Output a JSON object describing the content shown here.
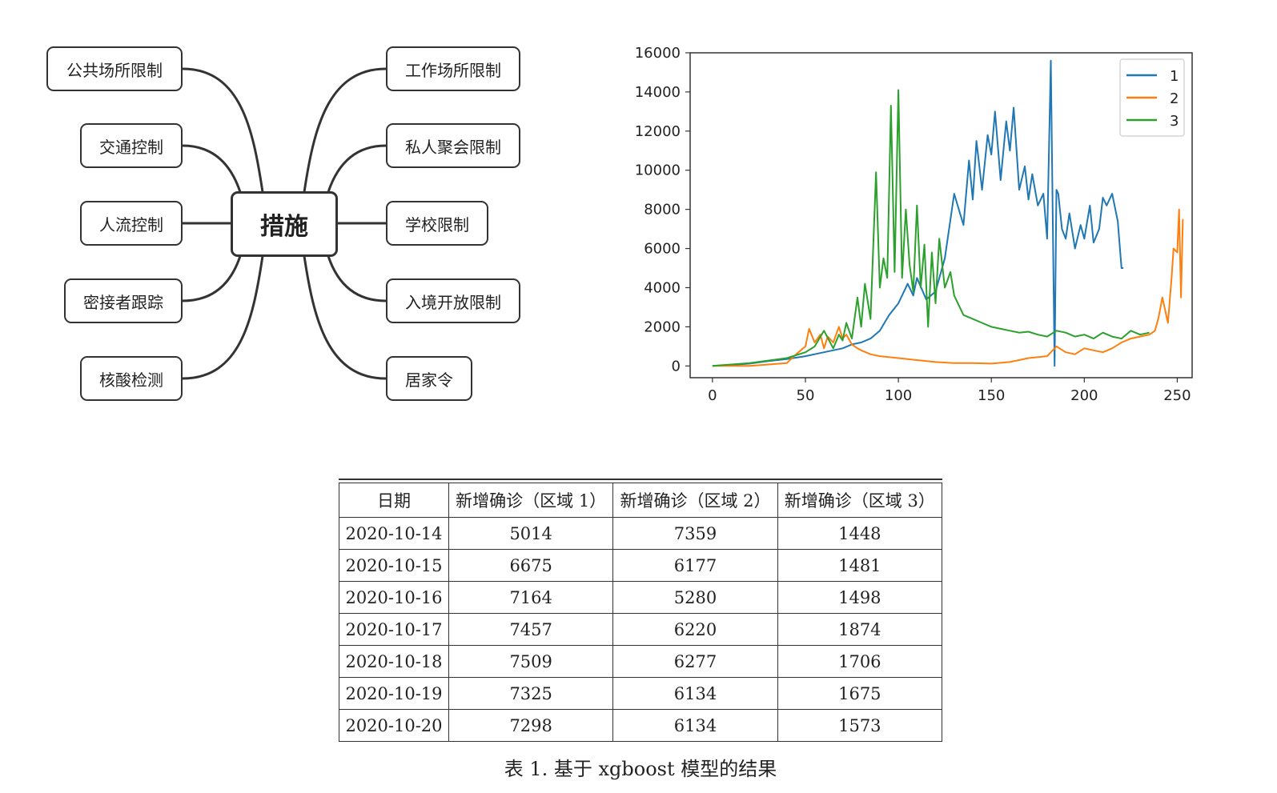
{
  "mindmap": {
    "center": "措施",
    "left": [
      "公共场所限制",
      "交通控制",
      "人流控制",
      "密接者跟踪",
      "核酸检测"
    ],
    "right": [
      "工作场所限制",
      "私人聚会限制",
      "学校限制",
      "入境开放限制",
      "居家令"
    ]
  },
  "chart_data": {
    "type": "line",
    "xlim": [
      -12,
      258
    ],
    "ylim": [
      -600,
      16000
    ],
    "xticks": [
      0,
      50,
      100,
      150,
      200,
      250
    ],
    "yticks": [
      0,
      2000,
      4000,
      6000,
      8000,
      10000,
      12000,
      14000,
      16000
    ],
    "grid": false,
    "legend_position": "top-right",
    "series": [
      {
        "name": "1",
        "color": "#1f77b4",
        "x": [
          0,
          10,
          20,
          30,
          40,
          50,
          60,
          70,
          75,
          80,
          85,
          90,
          95,
          100,
          105,
          108,
          110,
          115,
          120,
          125,
          130,
          135,
          138,
          140,
          142,
          145,
          148,
          150,
          152,
          155,
          158,
          160,
          162,
          165,
          168,
          170,
          172,
          175,
          178,
          180,
          182,
          184,
          185,
          186,
          188,
          190,
          192,
          195,
          198,
          200,
          203,
          205,
          208,
          210,
          212,
          215,
          218,
          220,
          221
        ],
        "y": [
          0,
          50,
          120,
          250,
          350,
          500,
          700,
          900,
          1100,
          1200,
          1400,
          1800,
          2600,
          3200,
          4200,
          3600,
          4500,
          3400,
          3800,
          5500,
          8800,
          7200,
          10500,
          8500,
          11500,
          9000,
          11800,
          10800,
          13000,
          9500,
          12500,
          11000,
          13200,
          9000,
          10200,
          8500,
          9800,
          8200,
          8800,
          6500,
          15600,
          0,
          9000,
          8800,
          7000,
          6500,
          7800,
          6000,
          7200,
          6500,
          8200,
          6300,
          7000,
          8600,
          8200,
          8800,
          7400,
          5000,
          5000
        ]
      },
      {
        "name": "2",
        "color": "#ff7f0e",
        "x": [
          0,
          20,
          40,
          45,
          50,
          52,
          55,
          58,
          60,
          62,
          65,
          68,
          70,
          72,
          75,
          78,
          80,
          85,
          90,
          100,
          110,
          120,
          130,
          140,
          150,
          160,
          170,
          180,
          185,
          190,
          195,
          200,
          205,
          210,
          215,
          220,
          225,
          230,
          235,
          238,
          240,
          242,
          245,
          247,
          248,
          250,
          251,
          252,
          253
        ],
        "y": [
          0,
          0,
          150,
          600,
          1000,
          1900,
          1200,
          1600,
          900,
          1500,
          1200,
          2000,
          1400,
          1600,
          1100,
          900,
          800,
          600,
          500,
          400,
          300,
          200,
          150,
          150,
          120,
          200,
          400,
          500,
          1000,
          700,
          600,
          900,
          800,
          700,
          900,
          1200,
          1400,
          1500,
          1600,
          1800,
          2500,
          3500,
          2200,
          4600,
          6000,
          5800,
          8000,
          3500,
          7500
        ]
      },
      {
        "name": "3",
        "color": "#2ca02c",
        "x": [
          0,
          20,
          40,
          50,
          55,
          60,
          65,
          68,
          70,
          72,
          75,
          78,
          80,
          82,
          85,
          88,
          90,
          92,
          94,
          96,
          98,
          100,
          102,
          104,
          106,
          108,
          110,
          112,
          114,
          116,
          118,
          120,
          122,
          125,
          128,
          130,
          135,
          140,
          145,
          150,
          155,
          160,
          165,
          170,
          175,
          180,
          185,
          190,
          195,
          200,
          205,
          210,
          215,
          220,
          225,
          230,
          235
        ],
        "y": [
          0,
          150,
          400,
          700,
          1000,
          1800,
          900,
          1600,
          1300,
          2200,
          1400,
          3500,
          2000,
          4200,
          2400,
          9900,
          4000,
          5500,
          4500,
          13300,
          4800,
          14100,
          4500,
          8000,
          5200,
          3800,
          8200,
          4000,
          6200,
          2000,
          5800,
          3200,
          6500,
          4000,
          4800,
          3600,
          2600,
          2400,
          2200,
          2000,
          1900,
          1800,
          1700,
          1750,
          1600,
          1500,
          1800,
          1700,
          1500,
          1600,
          1400,
          1700,
          1500,
          1400,
          1800,
          1600,
          1700
        ]
      }
    ]
  },
  "table": {
    "headers": [
      "日期",
      "新增确诊（区域 1）",
      "新增确诊（区域 2）",
      "新增确诊（区域 3）"
    ],
    "rows": [
      [
        "2020-10-14",
        "5014",
        "7359",
        "1448"
      ],
      [
        "2020-10-15",
        "6675",
        "6177",
        "1481"
      ],
      [
        "2020-10-16",
        "7164",
        "5280",
        "1498"
      ],
      [
        "2020-10-17",
        "7457",
        "6220",
        "1874"
      ],
      [
        "2020-10-18",
        "7509",
        "6277",
        "1706"
      ],
      [
        "2020-10-19",
        "7325",
        "6134",
        "1675"
      ],
      [
        "2020-10-20",
        "7298",
        "6134",
        "1573"
      ]
    ],
    "caption": "表 1.   基于 xgboost 模型的结果"
  }
}
